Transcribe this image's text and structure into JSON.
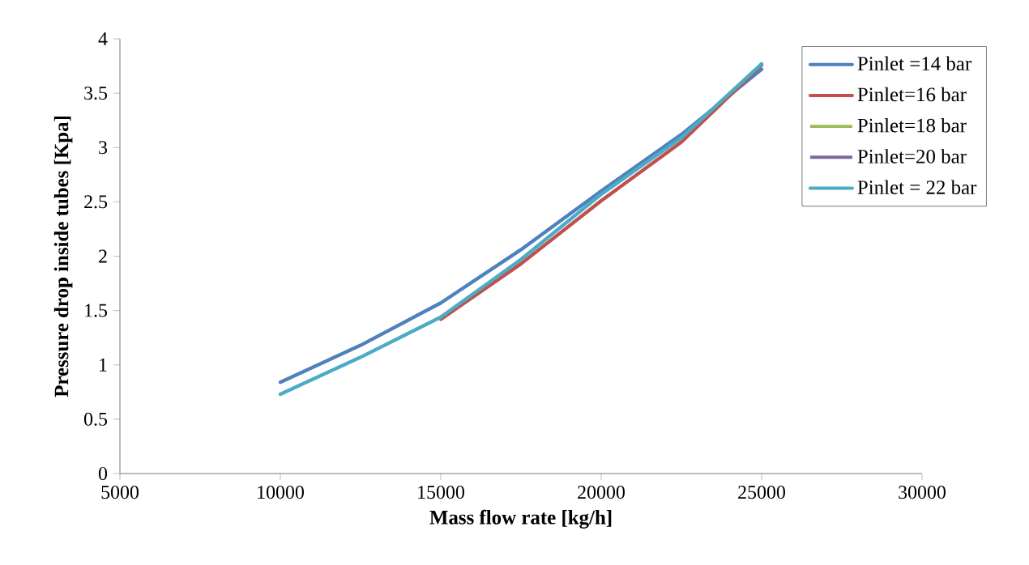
{
  "chart_data": {
    "type": "line",
    "xlabel": "Mass flow rate [kg/h]",
    "ylabel": "Pressure drop inside tubes [Kpa]",
    "x": [
      10000,
      12500,
      15000,
      17500,
      20000,
      22500,
      25000
    ],
    "series": [
      {
        "name": "Pinlet =14 bar",
        "color": "#4f81bd",
        "values": [
          0.84,
          1.18,
          1.57,
          2.06,
          2.6,
          3.12,
          3.72
        ]
      },
      {
        "name": "Pinlet=16 bar",
        "color": "#c0504d",
        "values": [
          null,
          null,
          1.42,
          1.93,
          2.51,
          3.05,
          3.76
        ]
      },
      {
        "name": "Pinlet=18 bar",
        "color": "#9bbb59",
        "values": [
          null,
          null,
          null,
          null,
          null,
          null,
          null
        ]
      },
      {
        "name": "Pinlet=20 bar",
        "color": "#8064a2",
        "values": [
          null,
          null,
          null,
          null,
          null,
          null,
          null
        ]
      },
      {
        "name": "Pinlet = 22 bar",
        "color": "#4bacc6",
        "values": [
          0.73,
          1.07,
          1.44,
          1.97,
          2.57,
          3.09,
          3.77
        ]
      }
    ],
    "xlim": [
      5000,
      30000
    ],
    "xticks": [
      5000,
      10000,
      15000,
      20000,
      25000,
      30000
    ],
    "ylim": [
      0,
      4
    ],
    "yticks": [
      0,
      0.5,
      1,
      1.5,
      2,
      2.5,
      3,
      3.5,
      4
    ],
    "grid": false,
    "legend": "top right",
    "marker": "none",
    "line_style": "solid"
  }
}
